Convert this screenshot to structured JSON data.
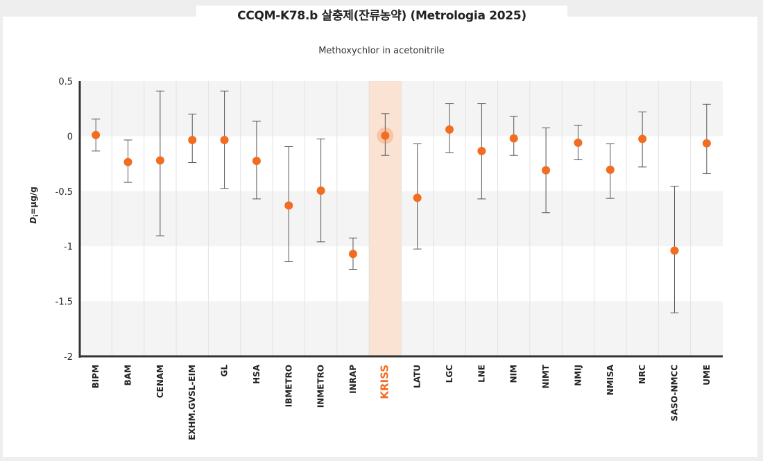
{
  "header": {
    "title": "CCQM-K78.b 살충제(잔류농약) (Metrologia 2025)",
    "subtitle": "Methoxychlor in acetonitrile"
  },
  "colors": {
    "point": "#f26d21",
    "highlight_band": "#fbe3d4",
    "band": "#f4f4f4",
    "error_bar": "#555555"
  },
  "chart_data": {
    "type": "scatter",
    "subtitle": "Methoxychlor in acetonitrile",
    "ylabel_main": "D",
    "ylabel_sub": "i",
    "ylabel_rest": "=μg/g",
    "ylim": [
      -2,
      0.5
    ],
    "yticks": [
      0.5,
      0,
      -0.5,
      -1,
      -1.5,
      -2
    ],
    "ytick_labels": [
      "0.5",
      "0",
      "-0.5",
      "-1",
      "-1.5",
      "-2"
    ],
    "highlight": "KRISS",
    "categories": [
      "BIPM",
      "BAM",
      "CENAM",
      "EXHM.GVSL-EIM",
      "GL",
      "HSA",
      "IBMETRO",
      "INMETRO",
      "INRAP",
      "KRISS",
      "LATU",
      "LGC",
      "LNE",
      "NIM",
      "NIMT",
      "NMIJ",
      "NMISA",
      "NRC",
      "SASO-NMCC",
      "UME"
    ],
    "values": [
      0.01,
      -0.235,
      -0.22,
      -0.035,
      -0.035,
      -0.225,
      -0.63,
      -0.495,
      -1.07,
      0.005,
      -0.56,
      0.06,
      -0.135,
      -0.02,
      -0.31,
      -0.06,
      -0.305,
      -0.025,
      -1.04,
      -0.065
    ],
    "upper": [
      0.155,
      -0.035,
      0.41,
      0.2,
      0.41,
      0.135,
      -0.095,
      -0.025,
      -0.925,
      0.205,
      -0.07,
      0.295,
      0.295,
      0.18,
      0.075,
      0.1,
      -0.07,
      0.22,
      -0.455,
      0.29
    ],
    "lower": [
      -0.135,
      -0.42,
      -0.905,
      -0.24,
      -0.475,
      -0.57,
      -1.14,
      -0.96,
      -1.21,
      -0.175,
      -1.025,
      -0.15,
      -0.57,
      -0.175,
      -0.695,
      -0.215,
      -0.565,
      -0.28,
      -1.605,
      -0.34
    ]
  }
}
